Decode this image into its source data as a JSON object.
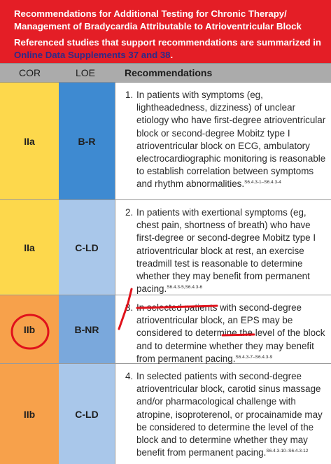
{
  "header": {
    "title": "Recommendations for Additional Testing for Chronic Therapy/ Management of Bradycardia Attributable to Atrioventricular Block",
    "ref_prefix": "Referenced studies that support recommendations are summarized in ",
    "ref_link": "Online Data Supplements 37 and 38",
    "ref_suffix": "."
  },
  "columns": {
    "cor": "COR",
    "loe": "LOE",
    "rec": "Recommendations"
  },
  "rows": [
    {
      "cor": "IIa",
      "loe": "B-R",
      "num": "1.",
      "text": "In patients with symptoms (eg, lightheadedness, dizziness) of unclear etiology who have first-degree atrioventricular block or second-degree Mobitz type I atrioventricular block on ECG, ambulatory electrocardiographic monitoring is reasonable to establish correlation between symptoms and rhythm abnormalities.",
      "ref": "S6.4.3-1–S6.4.3-4"
    },
    {
      "cor": "IIa",
      "loe": "C-LD",
      "num": "2.",
      "text": "In patients with exertional symptoms (eg, chest pain, shortness of breath) who have first-degree or second-degree Mobitz type I atrioventricular block at rest, an exercise treadmill test is reasonable to determine whether they may benefit from permanent pacing.",
      "ref": "S6.4.3-5,S6.4.3-6"
    },
    {
      "cor": "IIb",
      "loe": "B-NR",
      "num": "3.",
      "text": "In selected patients with second-degree atrioventricular block, an EPS may be considered to determine the level of the block and to determine whether they may benefit from permanent pacing.",
      "ref": "S6.4.3-7–S6.4.3-9"
    },
    {
      "cor": "IIb",
      "loe": "C-LD",
      "num": "4.",
      "text": "In selected patients with second-degree atrioventricular block, carotid sinus massage and/or pharmacological challenge with atropine, isoproterenol, or procainamide may be considered to determine the level of the block and to determine whether they may benefit from permanent pacing.",
      "ref": "S6.4.3-10–S6.4.3-12"
    }
  ],
  "colors": {
    "header_red": "#e41e26",
    "link_navy": "#2d2a8a",
    "cor_iia_yellow": "#fdd84c",
    "cor_iib_orange": "#f7a14b",
    "loe_b_blue": "#3e8ad1",
    "loe_c_lightblue": "#a9c7ea",
    "annotation_red": "#e0121b"
  }
}
